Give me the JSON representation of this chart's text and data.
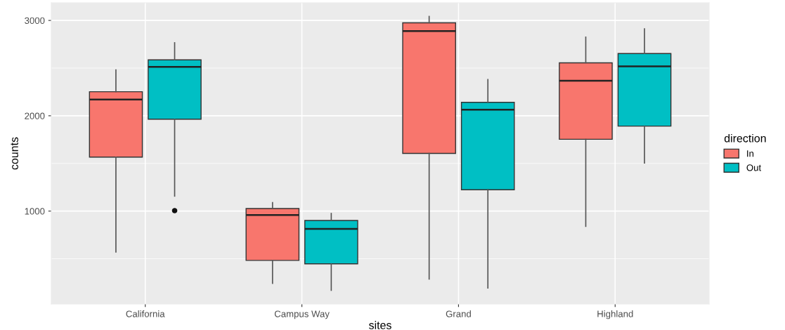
{
  "chart_data": {
    "type": "box",
    "xlabel": "sites",
    "ylabel": "counts",
    "legend_title": "direction",
    "categories": [
      "California",
      "Campus Way",
      "Grand",
      "Highland"
    ],
    "series": [
      {
        "name": "In",
        "color": "#f8766d",
        "boxes": [
          {
            "low": 570,
            "q1": 1566,
            "median": 2171,
            "q3": 2252,
            "high": 2481
          },
          {
            "low": 242,
            "q1": 483,
            "median": 958,
            "q3": 1027,
            "high": 1089
          },
          {
            "low": 287,
            "q1": 1605,
            "median": 2889,
            "q3": 2975,
            "high": 3042
          },
          {
            "low": 840,
            "q1": 1753,
            "median": 2368,
            "q3": 2555,
            "high": 2825
          }
        ]
      },
      {
        "name": "Out",
        "color": "#00bfc4",
        "boxes": [
          {
            "low": 1157,
            "q1": 1964,
            "median": 2513,
            "q3": 2587,
            "high": 2766,
            "outliers": [
              1005
            ]
          },
          {
            "low": 169,
            "q1": 447,
            "median": 813,
            "q3": 902,
            "high": 975
          },
          {
            "low": 193,
            "q1": 1224,
            "median": 2063,
            "q3": 2141,
            "high": 2380
          },
          {
            "low": 1504,
            "q1": 1891,
            "median": 2518,
            "q3": 2653,
            "high": 2911
          }
        ]
      }
    ],
    "ylim": [
      25,
      3185
    ],
    "yticks": [
      1000,
      2000,
      3000
    ],
    "grid": true,
    "legend": "right"
  }
}
